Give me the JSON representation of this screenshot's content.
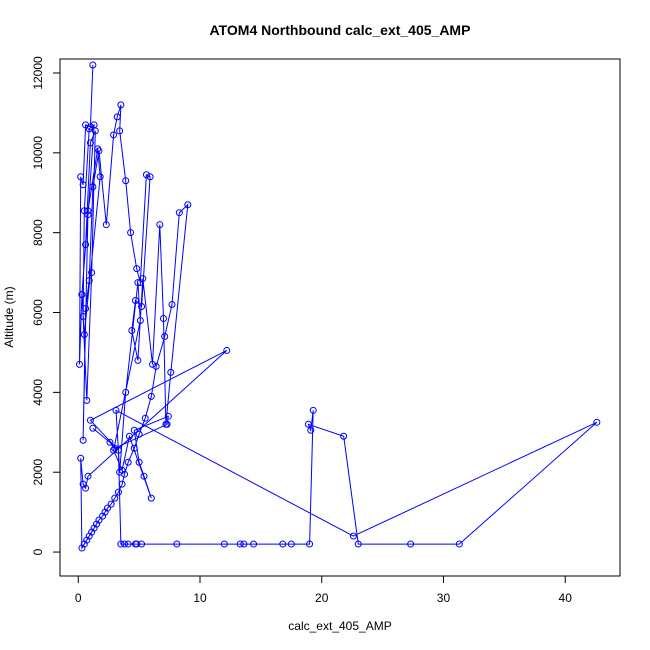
{
  "chart_data": {
    "type": "line",
    "title": "ATOM4 Northbound calc_ext_405_AMP",
    "xlabel": "calc_ext_405_AMP",
    "ylabel": "Altitude (m)",
    "xlim": [
      -1.5,
      44.5
    ],
    "ylim": [
      -600,
      12350
    ],
    "x_ticks": [
      0,
      10,
      20,
      30,
      40
    ],
    "y_ticks": [
      0,
      2000,
      4000,
      6000,
      8000,
      10000,
      12000
    ],
    "x_tick_labels": [
      "0",
      "10",
      "20",
      "30",
      "40"
    ],
    "y_tick_labels": [
      "0",
      "2000",
      "4000",
      "6000",
      "8000",
      "10000",
      "12000"
    ],
    "grid": false,
    "legend": "none",
    "series_color": "#0000ff",
    "series": [
      {
        "x": [
          1.2,
          1.0,
          0.6,
          0.4,
          0.2,
          0.1,
          0.3,
          0.8,
          1.3,
          0.9,
          0.5,
          0.4,
          0.7,
          1.1,
          1.4,
          1.0,
          0.6,
          0.3,
          0.5,
          1.8,
          1.6,
          0.8,
          0.4,
          0.6,
          0.9,
          1.2,
          1.7,
          2.3,
          2.9,
          3.2,
          3.5,
          3.4,
          3.9,
          4.3,
          4.8,
          5.1,
          5.6,
          5.9,
          5.2,
          4.7,
          4.4,
          4.9,
          5.3,
          6.1,
          6.7,
          7.0,
          7.2,
          7.6,
          9.0,
          8.3,
          7.7,
          7.1,
          6.4,
          6.0,
          5.5,
          5.0,
          4.6,
          4.1,
          3.8,
          3.6,
          3.3,
          3.0,
          2.7,
          2.4,
          2.2,
          2.0,
          1.7,
          1.5,
          1.3,
          1.1,
          0.9,
          0.7,
          0.5,
          0.3,
          0.2,
          0.4,
          0.6,
          0.8,
          12.2,
          1.0,
          3.3,
          3.5,
          3.8,
          4.1,
          4.7,
          4.8,
          5.2,
          8.1,
          12.0,
          13.3,
          13.6,
          14.4,
          16.8,
          17.5,
          19.0,
          19.3,
          19.1,
          18.9,
          21.8,
          23.0,
          27.3,
          31.3,
          42.6,
          22.6,
          3.1,
          3.4,
          3.9,
          4.9,
          5.1,
          2.9,
          3.6,
          4.2,
          6.0,
          5.4,
          5.0,
          4.6,
          7.4,
          7.3,
          3.0,
          2.6,
          1.2
        ],
        "y": [
          12200,
          10650,
          10700,
          9200,
          9400,
          4700,
          6450,
          8450,
          10700,
          10600,
          8550,
          5900,
          3800,
          7000,
          10550,
          10250,
          7700,
          6450,
          5450,
          9400,
          10100,
          8550,
          2800,
          6100,
          6800,
          9150,
          10050,
          8200,
          10450,
          10900,
          11200,
          10550,
          9300,
          8000,
          7100,
          6750,
          9450,
          9400,
          6150,
          6300,
          5550,
          4800,
          6850,
          4700,
          8200,
          5850,
          3200,
          4500,
          8700,
          8500,
          6200,
          5400,
          4650,
          3900,
          3350,
          2950,
          2600,
          2250,
          1950,
          1700,
          1500,
          1350,
          1200,
          1100,
          1000,
          900,
          800,
          700,
          600,
          500,
          400,
          300,
          200,
          100,
          2350,
          1700,
          1600,
          1900,
          5050,
          3300,
          2550,
          200,
          200,
          200,
          200,
          200,
          200,
          200,
          200,
          200,
          200,
          200,
          200,
          200,
          200,
          3550,
          3050,
          3200,
          2900,
          200,
          200,
          200,
          3250,
          400,
          3550,
          2000,
          4000,
          6750,
          5800,
          2550,
          2050,
          2900,
          1350,
          1900,
          2250,
          3050,
          3400,
          3200,
          2600,
          2750,
          3100
        ]
      }
    ]
  }
}
